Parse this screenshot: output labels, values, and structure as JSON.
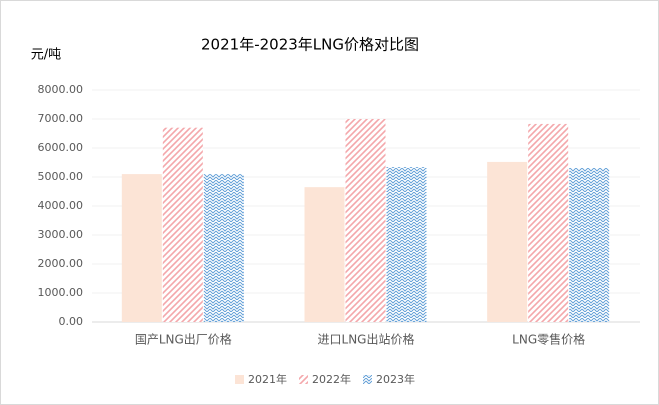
{
  "chart_data": {
    "type": "bar",
    "title": "2021年-2023年LNG价格对比图",
    "y_label": "元/吨",
    "categories": [
      "国产LNG出厂价格",
      "进口LNG出站价格",
      "LNG零售价格"
    ],
    "series": [
      {
        "name": "2021年",
        "color": "#fce4d6",
        "pattern": "solid",
        "values": [
          5100,
          4650,
          5520
        ]
      },
      {
        "name": "2022年",
        "color": "#f4a7ab",
        "pattern": "diagonal",
        "values": [
          6700,
          7000,
          6830
        ]
      },
      {
        "name": "2023年",
        "color": "#5b9bd5",
        "pattern": "crosshatch",
        "values": [
          5100,
          5340,
          5310
        ]
      }
    ],
    "ylim": [
      0,
      8000
    ],
    "yticks": [
      {
        "value": 0,
        "label": "0.00"
      },
      {
        "value": 1000,
        "label": "1000.00"
      },
      {
        "value": 2000,
        "label": "2000.00"
      },
      {
        "value": 3000,
        "label": "3000.00"
      },
      {
        "value": 4000,
        "label": "4000.00"
      },
      {
        "value": 5000,
        "label": "5000.00"
      },
      {
        "value": 6000,
        "label": "6000.00"
      },
      {
        "value": 7000,
        "label": "7000.00"
      },
      {
        "value": 8000,
        "label": "8000.00"
      }
    ],
    "grid": true,
    "legend": "bottom"
  }
}
